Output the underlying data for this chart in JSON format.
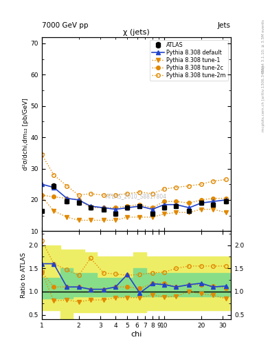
{
  "title_main": "7000 GeV pp",
  "title_right": "Jets",
  "plot_title": "χ (jets)",
  "watermark": "ATLAS_2010_S8817804",
  "ylabel_main": "d²σ/dchi,dm₁₂ [pb/GeV]",
  "ylabel_ratio": "Ratio to ATLAS",
  "xlabel": "chi",
  "right_label_top": "Rivet 3.1.10; ≥ 3.5M events",
  "right_label_bot": "mcplots.cern.ch [arXiv:1306.3436]",
  "ylim_main": [
    10,
    72
  ],
  "ylim_ratio": [
    0.4,
    2.3
  ],
  "chi_values": [
    1.0,
    1.25,
    1.6,
    2.0,
    2.5,
    3.2,
    4.0,
    5.0,
    6.3,
    8.0,
    10.0,
    12.5,
    16.0,
    20.0,
    25.0,
    32.0
  ],
  "atlas_data": [
    16.5,
    24.5,
    19.5,
    19.0,
    17.5,
    17.0,
    15.5,
    17.5,
    18.0,
    15.5,
    17.5,
    18.0,
    16.5,
    19.0,
    18.5,
    19.5
  ],
  "atlas_err": [
    0.5,
    0.8,
    0.6,
    0.6,
    0.5,
    0.5,
    0.5,
    0.5,
    0.5,
    0.5,
    0.5,
    0.5,
    0.5,
    0.6,
    0.6,
    0.6
  ],
  "pythia_default": [
    25.0,
    24.0,
    20.5,
    20.0,
    18.0,
    17.5,
    17.0,
    17.5,
    18.0,
    17.0,
    18.5,
    18.5,
    17.5,
    19.0,
    19.5,
    20.0
  ],
  "pythia_tune1": [
    21.0,
    16.5,
    14.5,
    13.5,
    13.5,
    13.5,
    13.5,
    14.5,
    14.5,
    14.5,
    15.5,
    16.0,
    16.0,
    17.0,
    17.0,
    16.0
  ],
  "pythia_tune2c": [
    21.5,
    21.0,
    20.5,
    20.0,
    17.5,
    17.5,
    17.5,
    18.0,
    18.5,
    17.5,
    19.5,
    19.5,
    19.0,
    20.0,
    20.5,
    20.5
  ],
  "pythia_tune2m": [
    34.5,
    28.0,
    24.5,
    21.5,
    22.0,
    21.5,
    21.5,
    22.0,
    22.5,
    22.0,
    23.5,
    24.0,
    24.5,
    25.0,
    26.0,
    26.5
  ],
  "ratio_default": [
    1.6,
    1.6,
    1.1,
    1.1,
    1.05,
    1.05,
    1.1,
    1.37,
    0.97,
    1.17,
    1.15,
    1.1,
    1.15,
    1.18,
    1.1,
    1.12
  ],
  "ratio_tune1": [
    1.42,
    0.8,
    0.82,
    0.78,
    0.82,
    0.82,
    0.87,
    0.87,
    0.87,
    0.93,
    0.88,
    0.9,
    1.0,
    0.95,
    0.92,
    0.85
  ],
  "ratio_tune2c": [
    1.42,
    1.1,
    1.1,
    1.1,
    1.05,
    1.05,
    1.1,
    1.1,
    1.07,
    1.17,
    1.18,
    1.1,
    1.15,
    1.15,
    1.12,
    1.08
  ],
  "ratio_tune2m": [
    2.1,
    1.6,
    1.47,
    1.35,
    1.72,
    1.4,
    1.38,
    1.35,
    1.37,
    1.4,
    1.42,
    1.5,
    1.55,
    1.55,
    1.55,
    1.55
  ],
  "green_band_lo": [
    0.85,
    0.85,
    0.9,
    0.9,
    0.9,
    0.9,
    0.9,
    0.9,
    0.9,
    0.9,
    0.9,
    0.9,
    0.9,
    0.9,
    0.9,
    0.9
  ],
  "green_band_hi": [
    1.3,
    1.5,
    1.4,
    1.4,
    1.3,
    1.3,
    1.3,
    1.5,
    1.4,
    1.4,
    1.4,
    1.4,
    1.4,
    1.4,
    1.4,
    1.4
  ],
  "yellow_band_lo": [
    0.6,
    0.35,
    0.55,
    0.55,
    0.55,
    0.55,
    0.55,
    0.55,
    0.6,
    0.6,
    0.6,
    0.6,
    0.6,
    0.6,
    0.6,
    0.6
  ],
  "yellow_band_hi": [
    2.0,
    1.9,
    1.9,
    1.85,
    1.75,
    1.75,
    1.75,
    1.85,
    1.75,
    1.75,
    1.75,
    1.75,
    1.75,
    1.75,
    1.75,
    1.75
  ],
  "color_blue": "#2244cc",
  "color_orange": "#e08800",
  "color_green_band": "#88dd88",
  "color_yellow_band": "#eeee66"
}
